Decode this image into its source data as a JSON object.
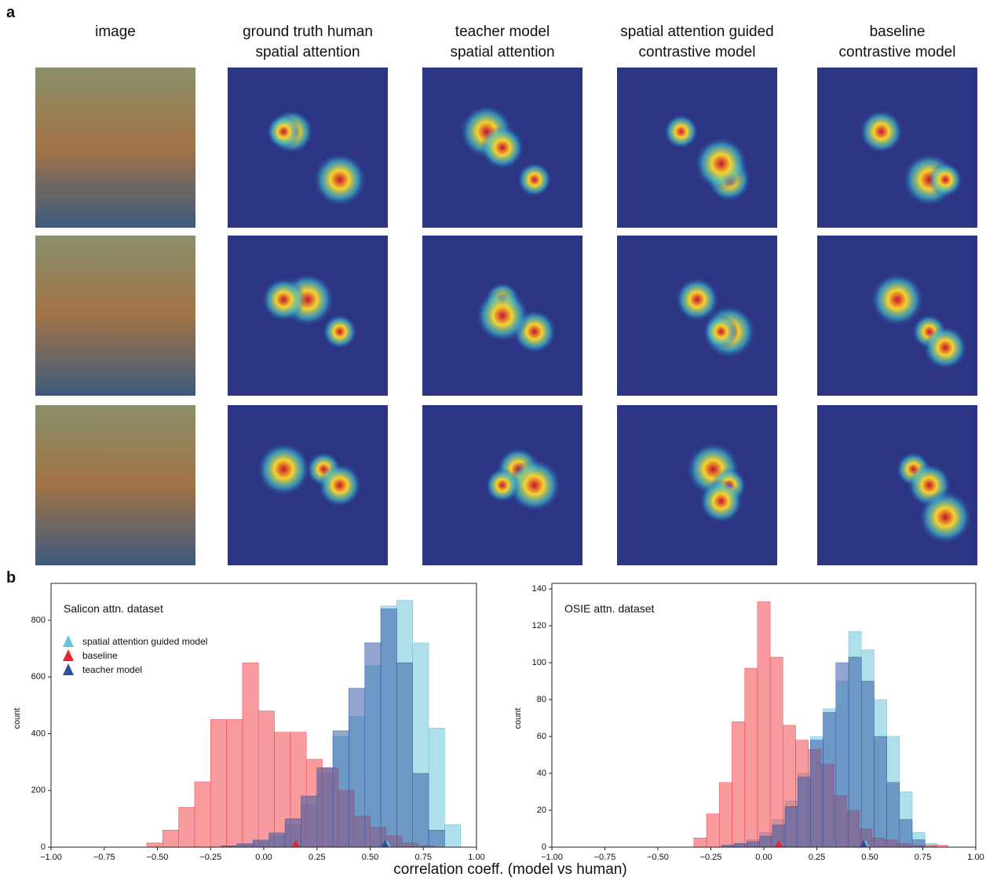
{
  "panel_a": {
    "label": "a",
    "columns": [
      [
        "image"
      ],
      [
        "ground truth human",
        "spatial attention"
      ],
      [
        "teacher model",
        "spatial attention"
      ],
      [
        "spatial attention guided",
        "contrastive model"
      ],
      [
        "baseline",
        "contrastive model"
      ]
    ]
  },
  "panel_b": {
    "label": "b",
    "xlabel": "correlation coeff. (model vs human)"
  },
  "chart_data": [
    {
      "type": "histogram",
      "annotation": "Salicon attn. dataset",
      "ylabel": "count",
      "legend": true,
      "xlim": [
        -1,
        1
      ],
      "ylim": [
        0,
        930
      ],
      "xticks": [
        {
          "value": -1,
          "label": "−1.00"
        },
        {
          "value": -0.75,
          "label": "−0.75"
        },
        {
          "value": -0.5,
          "label": "−0.50"
        },
        {
          "value": -0.25,
          "label": "−0.25"
        },
        {
          "value": 0,
          "label": "0.00"
        },
        {
          "value": 0.25,
          "label": "0.25"
        },
        {
          "value": 0.5,
          "label": "0.50"
        },
        {
          "value": 0.75,
          "label": "0.75"
        },
        {
          "value": 1,
          "label": "1.00"
        }
      ],
      "yticks": [
        0,
        200,
        400,
        600,
        800
      ],
      "series": [
        {
          "name": "spatial attention guided model",
          "color": "#6cc4d8",
          "marker_color": "#5fc4dc",
          "mean": 0.58,
          "bins": [
            -0.2,
            -0.125,
            -0.05,
            0.025,
            0.1,
            0.175,
            0.25,
            0.325,
            0.4,
            0.475,
            0.55,
            0.625,
            0.7,
            0.775,
            0.85,
            0.925
          ],
          "values": [
            3,
            10,
            20,
            40,
            80,
            150,
            260,
            390,
            460,
            640,
            850,
            870,
            720,
            420,
            80
          ]
        },
        {
          "name": "baseline",
          "color": "#f0484f",
          "marker_color": "#e8262b",
          "mean": 0.15,
          "bins": [
            -0.55,
            -0.475,
            -0.4,
            -0.325,
            -0.25,
            -0.175,
            -0.1,
            -0.025,
            0.05,
            0.125,
            0.2,
            0.275,
            0.35,
            0.425,
            0.5,
            0.575,
            0.65,
            0.725,
            0.8
          ],
          "values": [
            15,
            60,
            140,
            230,
            450,
            450,
            650,
            480,
            405,
            405,
            310,
            280,
            200,
            110,
            70,
            40,
            15,
            5
          ]
        },
        {
          "name": "teacher model",
          "color": "#3a5ca8",
          "marker_color": "#2f4f9c",
          "mean": 0.57,
          "bins": [
            -0.2,
            -0.125,
            -0.05,
            0.025,
            0.1,
            0.175,
            0.25,
            0.325,
            0.4,
            0.475,
            0.55,
            0.625,
            0.7,
            0.775,
            0.85
          ],
          "values": [
            5,
            12,
            25,
            50,
            100,
            180,
            280,
            410,
            560,
            720,
            840,
            650,
            260,
            60
          ]
        }
      ]
    },
    {
      "type": "histogram",
      "annotation": "OSIE attn. dataset",
      "ylabel": "count",
      "legend": false,
      "xlim": [
        -1,
        1
      ],
      "ylim": [
        0,
        143
      ],
      "xticks": [
        {
          "value": -1,
          "label": "−1.00"
        },
        {
          "value": -0.75,
          "label": "−0.75"
        },
        {
          "value": -0.5,
          "label": "−0.50"
        },
        {
          "value": -0.25,
          "label": "−0.25"
        },
        {
          "value": 0,
          "label": "0.00"
        },
        {
          "value": 0.25,
          "label": "0.25"
        },
        {
          "value": 0.5,
          "label": "0.50"
        },
        {
          "value": 0.75,
          "label": "0.75"
        },
        {
          "value": 1,
          "label": "1.00"
        }
      ],
      "yticks": [
        0,
        20,
        40,
        60,
        80,
        100,
        120,
        140
      ],
      "series": [
        {
          "color": "#6cc4d8",
          "marker_color": "#5fc4dc",
          "mean": 0.48,
          "bins": [
            -0.2,
            -0.14,
            -0.08,
            -0.02,
            0.04,
            0.1,
            0.16,
            0.22,
            0.28,
            0.34,
            0.4,
            0.46,
            0.52,
            0.58,
            0.64,
            0.7,
            0.76,
            0.82
          ],
          "values": [
            1,
            2,
            4,
            8,
            15,
            25,
            40,
            60,
            75,
            90,
            117,
            107,
            80,
            60,
            30,
            8,
            2
          ]
        },
        {
          "color": "#f0484f",
          "marker_color": "#e8262b",
          "mean": 0.07,
          "bins": [
            -0.33,
            -0.27,
            -0.21,
            -0.15,
            -0.09,
            -0.03,
            0.03,
            0.09,
            0.15,
            0.21,
            0.27,
            0.33,
            0.39,
            0.45,
            0.51,
            0.57,
            0.63,
            0.69,
            0.75,
            0.81,
            0.87
          ],
          "values": [
            5,
            18,
            35,
            68,
            97,
            133,
            103,
            66,
            58,
            53,
            45,
            28,
            20,
            10,
            5,
            4,
            2,
            1,
            1,
            1
          ]
        },
        {
          "color": "#3a5ca8",
          "marker_color": "#2f4f9c",
          "mean": 0.47,
          "bins": [
            -0.2,
            -0.14,
            -0.08,
            -0.02,
            0.04,
            0.1,
            0.16,
            0.22,
            0.28,
            0.34,
            0.4,
            0.46,
            0.52,
            0.58,
            0.64,
            0.7,
            0.76
          ],
          "values": [
            1,
            2,
            3,
            6,
            12,
            22,
            38,
            58,
            73,
            100,
            103,
            90,
            60,
            35,
            15,
            4
          ]
        }
      ]
    }
  ]
}
